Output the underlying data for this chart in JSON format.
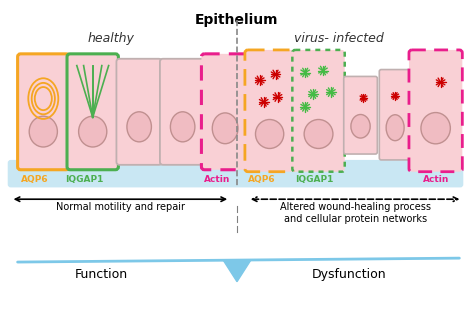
{
  "title": "Epithelium",
  "healthy_label": "healthy",
  "infected_label": "virus- infected",
  "bg_color": "#ffffff",
  "cell_fill": "#f9d0d5",
  "cell_border_gray": "#c0b0b0",
  "nucleus_fill": "#f0bcc2",
  "nucleus_border": "#c09090",
  "blue_base_color": "#b8dff0",
  "function_label": "Function",
  "dysfunction_label": "Dysfunction",
  "normal_arrow_label": "Normal motility and repair",
  "altered_arrow_label": "Altered wound-healing process\nand cellular protein networks",
  "aqp6_color": "#f5a623",
  "iqgap1_color": "#4caf50",
  "actin_color": "#e91e8c",
  "virus_color": "#cc0000",
  "divider_color": "#888888",
  "balance_color": "#7dc8e8"
}
